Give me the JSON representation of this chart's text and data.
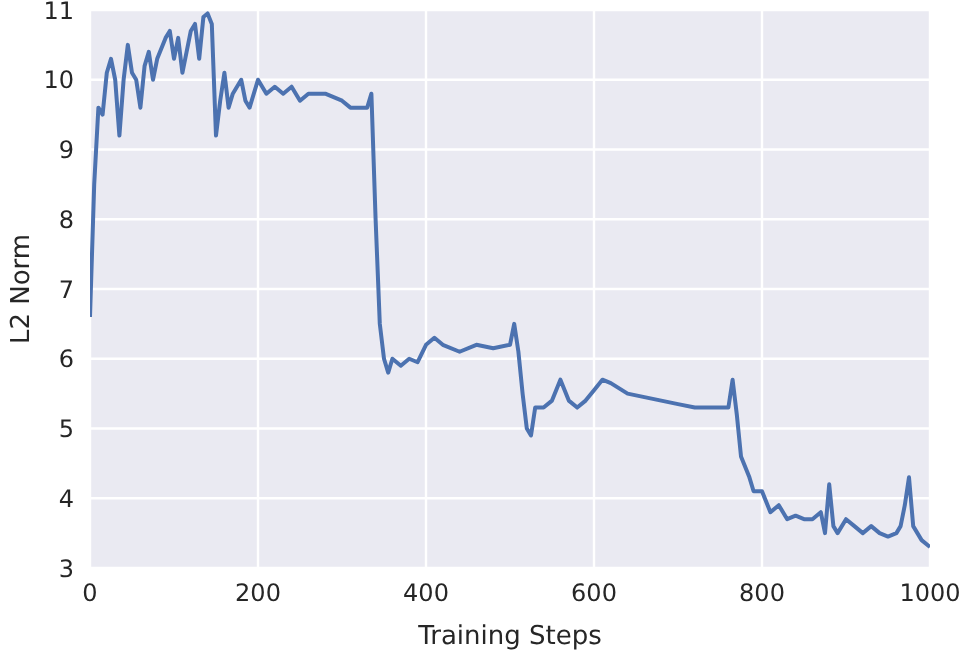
{
  "chart_data": {
    "type": "line",
    "xlabel": "Training Steps",
    "ylabel": "L2 Norm",
    "xlim": [
      0,
      1000
    ],
    "ylim": [
      3,
      11
    ],
    "xticks": [
      0,
      200,
      400,
      600,
      800,
      1000
    ],
    "yticks": [
      3,
      4,
      5,
      6,
      7,
      8,
      9,
      10,
      11
    ],
    "grid": true,
    "legend": false,
    "marker": "none",
    "line_style": "solid",
    "x": [
      0,
      5,
      10,
      15,
      20,
      25,
      30,
      35,
      40,
      45,
      50,
      55,
      60,
      65,
      70,
      75,
      80,
      90,
      95,
      100,
      105,
      110,
      120,
      125,
      130,
      135,
      140,
      145,
      150,
      155,
      160,
      165,
      170,
      180,
      185,
      190,
      200,
      210,
      220,
      230,
      240,
      250,
      260,
      280,
      300,
      310,
      320,
      330,
      335,
      340,
      345,
      350,
      355,
      360,
      370,
      380,
      390,
      400,
      410,
      420,
      440,
      460,
      480,
      500,
      505,
      510,
      515,
      520,
      525,
      530,
      540,
      550,
      560,
      570,
      580,
      590,
      600,
      610,
      620,
      640,
      660,
      680,
      700,
      720,
      740,
      760,
      765,
      770,
      775,
      785,
      790,
      800,
      810,
      820,
      830,
      840,
      850,
      860,
      870,
      875,
      880,
      885,
      890,
      900,
      910,
      920,
      930,
      940,
      950,
      960,
      965,
      970,
      975,
      980,
      990,
      1000
    ],
    "series": [
      {
        "color": "#4c72b0",
        "values": [
          6.6,
          8.5,
          9.6,
          9.5,
          10.1,
          10.3,
          10.0,
          9.2,
          10.0,
          10.5,
          10.1,
          10.0,
          9.6,
          10.2,
          10.4,
          10.0,
          10.3,
          10.6,
          10.7,
          10.3,
          10.6,
          10.1,
          10.7,
          10.8,
          10.3,
          10.9,
          10.95,
          10.8,
          9.2,
          9.7,
          10.1,
          9.6,
          9.8,
          10.0,
          9.7,
          9.6,
          10.0,
          9.8,
          9.9,
          9.8,
          9.9,
          9.7,
          9.8,
          9.8,
          9.7,
          9.6,
          9.6,
          9.6,
          9.8,
          8.0,
          6.5,
          6.0,
          5.8,
          6.0,
          5.9,
          6.0,
          5.95,
          6.2,
          6.3,
          6.2,
          6.1,
          6.2,
          6.15,
          6.2,
          6.5,
          6.1,
          5.5,
          5.0,
          4.9,
          5.3,
          5.3,
          5.4,
          5.7,
          5.4,
          5.3,
          5.4,
          5.55,
          5.7,
          5.65,
          5.5,
          5.45,
          5.4,
          5.35,
          5.3,
          5.3,
          5.3,
          5.7,
          5.2,
          4.6,
          4.3,
          4.1,
          4.1,
          3.8,
          3.9,
          3.7,
          3.75,
          3.7,
          3.7,
          3.8,
          3.5,
          4.2,
          3.6,
          3.5,
          3.7,
          3.6,
          3.5,
          3.6,
          3.5,
          3.45,
          3.5,
          3.6,
          3.9,
          4.3,
          3.6,
          3.4,
          3.3
        ]
      }
    ]
  }
}
